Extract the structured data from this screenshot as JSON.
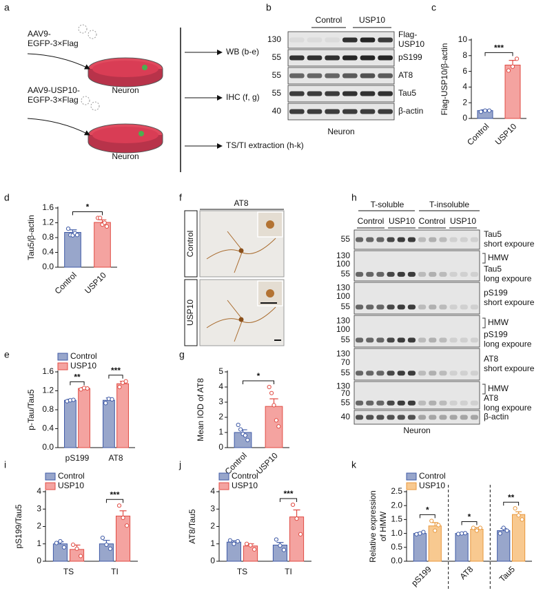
{
  "panel_labels": [
    "a",
    "b",
    "c",
    "d",
    "f",
    "h",
    "e",
    "g",
    "i",
    "j",
    "k"
  ],
  "diagram_a": {
    "virus_1": [
      "AAV9-",
      "EGFP-3×Flag"
    ],
    "virus_2": [
      "AAV9-USP10-",
      "EGFP-3×Flag"
    ],
    "dish_1": "Neuron",
    "dish_2": "Neuron",
    "outputs": [
      "WB (b-e)",
      "IHC (f, g)",
      "TS/TI extraction (h-k)"
    ]
  },
  "blot_b": {
    "groups": [
      "Control",
      "USP10"
    ],
    "markers": [
      "130",
      "55",
      "55",
      "55",
      "40"
    ],
    "labels": [
      [
        "Flag-",
        "USP10"
      ],
      [
        "pS199"
      ],
      [
        "AT8"
      ],
      [
        "Tau5"
      ],
      [
        "β-actin"
      ]
    ],
    "footer": "Neuron"
  },
  "image_f": {
    "stain": "AT8",
    "rows": [
      "Control",
      "USP10"
    ]
  },
  "blot_h": {
    "fractions": [
      "T-soluble",
      "T-insoluble"
    ],
    "groups": [
      "Control",
      "USP10",
      "Control",
      "USP10"
    ],
    "rows": [
      {
        "markers": [
          "55"
        ],
        "label": [
          "Tau5",
          "short expoure"
        ]
      },
      {
        "markers": [
          "130",
          "100",
          "55"
        ],
        "hmw": "HMW",
        "label": [
          "Tau5",
          "long expoure"
        ]
      },
      {
        "markers": [
          "130",
          "100",
          "55"
        ],
        "label": [
          "pS199",
          "short expoure"
        ]
      },
      {
        "markers": [
          "130",
          "100",
          "55"
        ],
        "hmw": "HMW",
        "label": [
          "pS199",
          "long expoure"
        ]
      },
      {
        "markers": [
          "130",
          "70",
          "55"
        ],
        "label": [
          "AT8",
          "short expoure"
        ]
      },
      {
        "markers": [
          "130",
          "70",
          "55"
        ],
        "hmw": "HMW",
        "label": [
          "AT8",
          "long expoure"
        ]
      },
      {
        "markers": [
          "40"
        ],
        "label": [
          "β-actin"
        ]
      }
    ],
    "footer": "Neuron"
  },
  "chart_data": [
    {
      "type": "bar",
      "ylabel": "Flag-USP10/β-actin",
      "categories": [
        "Control",
        "USP10"
      ],
      "values": [
        1.0,
        6.8
      ],
      "errors": [
        0.1,
        0.6
      ],
      "points": [
        [
          0.85,
          1.0,
          1.0
        ],
        [
          6.1,
          6.6,
          7.6
        ]
      ],
      "colors": [
        "#98a6cb",
        "#f4a3a0"
      ],
      "edge_colors": [
        "#3f5aa6",
        "#e04b43"
      ],
      "ylim": [
        0,
        10
      ],
      "yticks": [
        0,
        2,
        4,
        6,
        8,
        10
      ],
      "significance": "***"
    },
    {
      "type": "bar",
      "ylabel": "Tau5/β-actin",
      "categories": [
        "Control",
        "USP10"
      ],
      "values": [
        0.94,
        1.21
      ],
      "errors": [
        0.07,
        0.07
      ],
      "points": [
        [
          1.04,
          0.87,
          0.86,
          0.92,
          0.87
        ],
        [
          1.33,
          1.33,
          1.15,
          1.2,
          1.1
        ]
      ],
      "colors": [
        "#98a6cb",
        "#f4a3a0"
      ],
      "edge_colors": [
        "#3f5aa6",
        "#e04b43"
      ],
      "ylim": [
        0,
        1.6
      ],
      "yticks": [
        {
          "value": 0,
          "label": "0.0"
        },
        {
          "value": 0.4,
          "label": "0.4"
        },
        {
          "value": 0.8,
          "label": "0.8"
        },
        {
          "value": 1.2,
          "label": "1.2"
        },
        {
          "value": 1.6,
          "label": "1.6"
        }
      ],
      "significance": "*"
    },
    {
      "type": "bar",
      "ylabel": "p-Tau/Tau5",
      "categories": [
        "pS199",
        "AT8"
      ],
      "series": [
        {
          "name": "Control",
          "color": "#98a6cb",
          "edge_color": "#3f5aa6",
          "values": [
            1.0,
            1.0
          ],
          "errors": [
            0.02,
            0.05
          ],
          "points": [
            [
              0.98,
              1.0,
              1.01
            ],
            [
              0.94,
              1.03,
              1.02
            ]
          ]
        },
        {
          "name": "USP10",
          "color": "#f4a3a0",
          "edge_color": "#e04b43",
          "values": [
            1.25,
            1.35
          ],
          "errors": [
            0.02,
            0.05
          ],
          "points": [
            [
              1.23,
              1.26,
              1.25
            ],
            [
              1.28,
              1.37,
              1.4
            ]
          ]
        }
      ],
      "ylim": [
        0,
        1.6
      ],
      "yticks": [
        {
          "value": 0,
          "label": "0.0"
        },
        {
          "value": 0.4,
          "label": "0.4"
        },
        {
          "value": 0.8,
          "label": "0.8"
        },
        {
          "value": 1.2,
          "label": "1.2"
        },
        {
          "value": 1.6,
          "label": "1.6"
        }
      ],
      "significance": [
        "**",
        "***"
      ]
    },
    {
      "type": "bar",
      "ylabel": "Mean IOD of AT8",
      "categories": [
        "Control",
        "USP10"
      ],
      "values": [
        1.0,
        2.72
      ],
      "errors": [
        0.18,
        0.5
      ],
      "points": [
        [
          1.5,
          1.2,
          0.9,
          0.8,
          0.5
        ],
        [
          4.0,
          3.6,
          2.8,
          1.8,
          1.4
        ]
      ],
      "colors": [
        "#98a6cb",
        "#f4a3a0"
      ],
      "edge_colors": [
        "#3f5aa6",
        "#e04b43"
      ],
      "ylim": [
        0,
        5
      ],
      "yticks": [
        0,
        1,
        2,
        3,
        4,
        5
      ],
      "significance": "*"
    },
    {
      "type": "bar",
      "ylabel": "pS199/Tau5",
      "categories": [
        "TS",
        "TI"
      ],
      "series": [
        {
          "name": "Control",
          "color": "#98a6cb",
          "edge_color": "#3f5aa6",
          "values": [
            1.0,
            1.0
          ],
          "errors": [
            0.12,
            0.2
          ],
          "points": [
            [
              1.05,
              1.15,
              0.8
            ],
            [
              1.35,
              0.95,
              0.72
            ]
          ]
        },
        {
          "name": "USP10",
          "color": "#f4a3a0",
          "edge_color": "#e04b43",
          "values": [
            0.68,
            2.6
          ],
          "errors": [
            0.25,
            0.3
          ],
          "points": [
            [
              0.95,
              0.72,
              0.3
            ],
            [
              3.2,
              2.5,
              2.05
            ]
          ]
        }
      ],
      "ylim": [
        0,
        4
      ],
      "yticks": [
        0,
        1,
        2,
        3,
        4
      ],
      "significance": [
        null,
        "***"
      ]
    },
    {
      "type": "bar",
      "ylabel": "AT8/Tau5",
      "categories": [
        "TS",
        "TI"
      ],
      "series": [
        {
          "name": "Control",
          "color": "#98a6cb",
          "edge_color": "#3f5aa6",
          "values": [
            1.1,
            0.93
          ],
          "errors": [
            0.08,
            0.15
          ],
          "points": [
            [
              1.2,
              1.0,
              1.15
            ],
            [
              1.25,
              0.9,
              0.65
            ]
          ]
        },
        {
          "name": "USP10",
          "color": "#f4a3a0",
          "edge_color": "#e04b43",
          "values": [
            0.88,
            2.55
          ],
          "errors": [
            0.12,
            0.4
          ],
          "points": [
            [
              1.0,
              0.92,
              0.68
            ],
            [
              3.25,
              2.45,
              1.55
            ]
          ]
        }
      ],
      "ylim": [
        0,
        4
      ],
      "yticks": [
        0,
        1,
        2,
        3,
        4
      ],
      "significance": [
        null,
        "***"
      ]
    },
    {
      "type": "bar",
      "ylabel": [
        "Relative expression",
        "of HMW"
      ],
      "categories": [
        "pS199",
        "AT8",
        "Tau5"
      ],
      "series": [
        {
          "name": "Control",
          "color": "#98a6cb",
          "edge_color": "#3f5aa6",
          "values": [
            1.0,
            1.0,
            1.1
          ],
          "errors": [
            0.03,
            0.02,
            0.08
          ],
          "points": [
            [
              0.97,
              1.0,
              1.05
            ],
            [
              0.98,
              1.0,
              1.01
            ],
            [
              1.0,
              1.2,
              1.1
            ]
          ]
        },
        {
          "name": "USP10",
          "color": "#f8c990",
          "edge_color": "#e8983e",
          "values": [
            1.27,
            1.15,
            1.68
          ],
          "errors": [
            0.12,
            0.06,
            0.1
          ],
          "points": [
            [
              1.45,
              1.1,
              1.3
            ],
            [
              1.2,
              1.1,
              1.2
            ],
            [
              1.9,
              1.65,
              1.5
            ]
          ]
        }
      ],
      "ylim": [
        0,
        2.5
      ],
      "yticks": [
        {
          "value": 0,
          "label": "0.0"
        },
        {
          "value": 0.5,
          "label": "0.5"
        },
        {
          "value": 1.0,
          "label": "1.0"
        },
        {
          "value": 1.5,
          "label": "1.5"
        },
        {
          "value": 2.0,
          "label": "2.0"
        },
        {
          "value": 2.5,
          "label": "2.5"
        }
      ],
      "significance": [
        "*",
        "*",
        "**"
      ],
      "group_separators": true
    }
  ]
}
